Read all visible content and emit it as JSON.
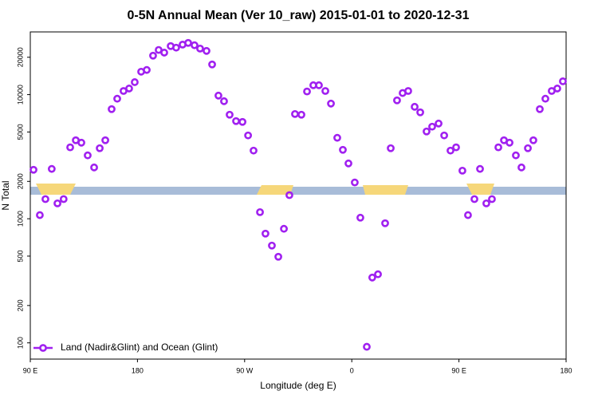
{
  "chart_data": {
    "type": "scatter",
    "title": "0-5N Annual Mean (Ver 10_raw)   2015-01-01 to 2020-12-31",
    "xlabel": "Longitude (deg E)",
    "ylabel": "N Total",
    "ylog": true,
    "legend": "lower left",
    "xlim": [
      90,
      540
    ],
    "ylim": [
      74,
      32000
    ],
    "xticks": [
      {
        "value": 90,
        "label": "90 E"
      },
      180,
      {
        "value": 270,
        "label": "90 W"
      },
      {
        "value": 360,
        "label": "0"
      },
      {
        "value": 450,
        "label": "90 E"
      },
      {
        "value": 540,
        "label": "180"
      }
    ],
    "yticks": [
      100,
      200,
      500,
      1000,
      2000,
      5000,
      10000,
      20000
    ],
    "series": [
      {
        "name": "Land (Nadir&Glint) and Ocean (Glint)",
        "color": "#a020f0",
        "x": [
          92.7,
          98,
          102.7,
          108,
          112.8,
          118,
          123.5,
          128.2,
          132.9,
          138.2,
          143.6,
          148.3,
          153,
          158.3,
          163,
          168.3,
          173,
          177.7,
          183.1,
          187.8,
          193.1,
          197.8,
          202.5,
          207.9,
          212.5,
          217.9,
          222.6,
          227.9,
          232.6,
          238,
          242.7,
          248,
          252.7,
          257.4,
          262.8,
          268.2,
          272.9,
          277.5,
          282.9,
          287.5,
          292.9,
          298.3,
          303,
          307.6,
          312.3,
          317.7,
          322.4,
          327.7,
          332.4,
          337.8,
          342.5,
          347.8,
          352.5,
          357.2,
          362.5,
          367.2,
          372.6,
          377.2,
          382,
          388,
          392.7,
          398,
          402.7,
          407.4,
          412.8,
          417.5,
          422.8,
          427.5,
          432.9,
          437.6,
          442.9,
          447.6,
          452.9,
          457.6,
          463,
          467.7,
          473,
          477.7,
          483.1,
          487.8,
          492.5,
          497.8,
          502.5,
          507.9,
          512.5,
          517.9,
          522.6,
          527.9,
          532.6,
          537.3
        ],
        "values": [
          2480,
          1070,
          1440,
          2520,
          1330,
          1440,
          3760,
          4290,
          4100,
          3240,
          2590,
          3700,
          4290,
          7640,
          9270,
          10700,
          11200,
          12600,
          15300,
          15800,
          20600,
          22900,
          21800,
          24600,
          23900,
          25300,
          26100,
          25000,
          23500,
          22500,
          17500,
          9820,
          8850,
          6890,
          6120,
          6030,
          4690,
          3540,
          1130,
          759,
          608,
          494,
          830,
          1550,
          6980,
          6890,
          10600,
          11900,
          11900,
          10700,
          8470,
          4490,
          3590,
          2790,
          1960,
          1020,
          93,
          336,
          357,
          920,
          3700,
          8990,
          10300,
          10700,
          7980,
          7200,
          5050,
          5520,
          5850,
          4690,
          3540,
          3760,
          2440,
          1070,
          1440,
          2520,
          1330,
          1440,
          3760,
          4290,
          4100,
          3240,
          2590,
          3700,
          4290,
          7640,
          9270,
          10700,
          11200,
          12800
        ]
      }
    ]
  }
}
